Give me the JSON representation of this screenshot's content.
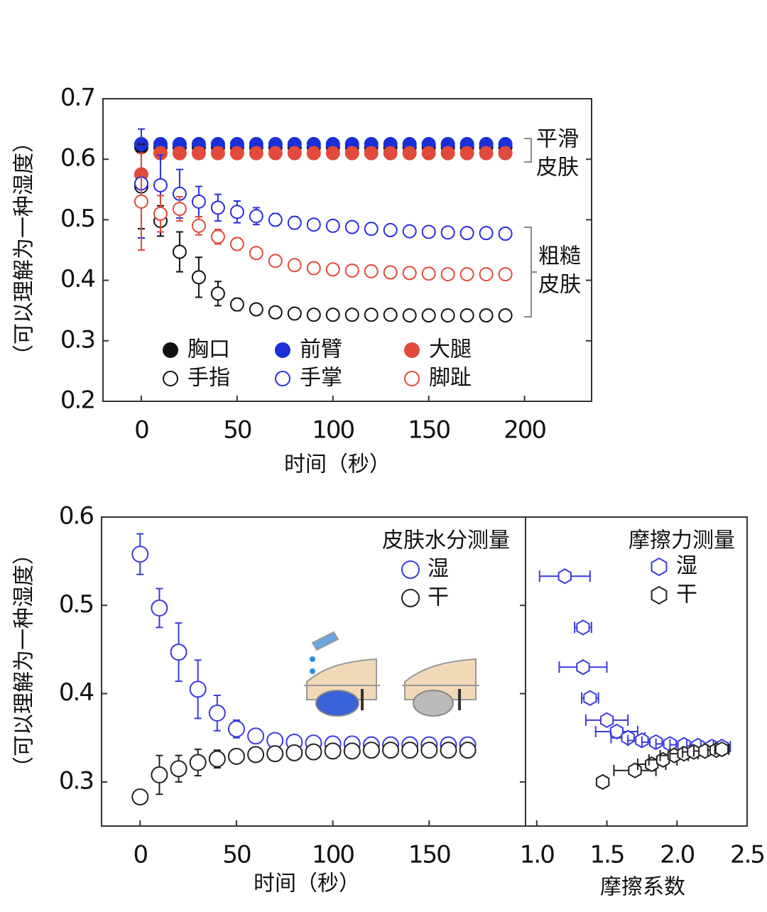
{
  "chart_data": [
    {
      "type": "scatter",
      "xlabel": "时间（秒）",
      "ylabel": "（可以理解为一种湿度）",
      "x": [
        0,
        10,
        20,
        30,
        40,
        50,
        60,
        70,
        80,
        90,
        100,
        110,
        120,
        130,
        140,
        150,
        160,
        170,
        180,
        190
      ],
      "xlim": [
        -20,
        235
      ],
      "ylim": [
        0.2,
        0.7
      ],
      "xticks": [
        0,
        50,
        100,
        150,
        200
      ],
      "yticks": [
        0.2,
        0.3,
        0.4,
        0.5,
        0.6,
        0.7
      ],
      "series": [
        {
          "name": "胸口",
          "color": "#111111",
          "filled": true,
          "marker": "circle",
          "values": [
            0.62,
            0.62,
            0.62,
            0.62,
            0.62,
            0.62,
            0.62,
            0.62,
            0.62,
            0.62,
            0.62,
            0.62,
            0.62,
            0.62,
            0.62,
            0.62,
            0.62,
            0.62,
            0.62,
            0.62
          ]
        },
        {
          "name": "前臂",
          "color": "#1a2fd6",
          "filled": true,
          "marker": "circle",
          "values": [
            0.625,
            0.625,
            0.625,
            0.625,
            0.625,
            0.625,
            0.625,
            0.625,
            0.625,
            0.625,
            0.625,
            0.625,
            0.625,
            0.625,
            0.625,
            0.625,
            0.625,
            0.625,
            0.625,
            0.625
          ]
        },
        {
          "name": "大腿",
          "color": "#e24a3b",
          "filled": true,
          "marker": "circle",
          "values": [
            0.575,
            0.61,
            0.61,
            0.61,
            0.61,
            0.61,
            0.61,
            0.61,
            0.61,
            0.61,
            0.61,
            0.61,
            0.61,
            0.61,
            0.61,
            0.61,
            0.61,
            0.61,
            0.61,
            0.61
          ]
        },
        {
          "name": "手指",
          "color": "#111111",
          "filled": false,
          "marker": "circle",
          "values": [
            0.555,
            0.498,
            0.447,
            0.405,
            0.378,
            0.36,
            0.352,
            0.347,
            0.345,
            0.343,
            0.343,
            0.343,
            0.343,
            0.343,
            0.342,
            0.342,
            0.342,
            0.342,
            0.342,
            0.342
          ],
          "errors": [
            0.07,
            0.025,
            0.033,
            0.033,
            0.02,
            0.01,
            0.008,
            0.007,
            0.007,
            0.007,
            0.007,
            0.007,
            0.007,
            0.007,
            0.007,
            0.007,
            0.007,
            0.007,
            0.007,
            0.007
          ]
        },
        {
          "name": "手掌",
          "color": "#2a2ee0",
          "filled": false,
          "marker": "circle",
          "values": [
            0.56,
            0.557,
            0.543,
            0.53,
            0.52,
            0.513,
            0.506,
            0.5,
            0.495,
            0.492,
            0.49,
            0.488,
            0.485,
            0.483,
            0.481,
            0.48,
            0.479,
            0.478,
            0.478,
            0.477
          ],
          "errors": [
            0.09,
            0.05,
            0.04,
            0.025,
            0.022,
            0.018,
            0.014,
            0.01,
            0.01,
            0.008,
            0.008,
            0.007,
            0.007,
            0.007,
            0.007,
            0.007,
            0.007,
            0.007,
            0.007,
            0.007
          ]
        },
        {
          "name": "脚趾",
          "color": "#e24a3b",
          "filled": false,
          "marker": "circle",
          "values": [
            0.53,
            0.51,
            0.518,
            0.49,
            0.472,
            0.46,
            0.445,
            0.432,
            0.425,
            0.42,
            0.418,
            0.416,
            0.415,
            0.413,
            0.412,
            0.411,
            0.41,
            0.41,
            0.41,
            0.41
          ],
          "errors": [
            0.08,
            0.03,
            0.02,
            0.015,
            0.012,
            0.01,
            0.008,
            0.008,
            0.007,
            0.007,
            0.007,
            0.007,
            0.007,
            0.007,
            0.007,
            0.007,
            0.007,
            0.007,
            0.007,
            0.007
          ]
        }
      ],
      "annotations": [
        {
          "lines": [
            "平滑",
            "皮肤"
          ]
        },
        {
          "lines": [
            "粗糙",
            "皮肤"
          ]
        }
      ]
    },
    {
      "type": "scatter",
      "xlabel": "时间（秒）",
      "ylabel": "（可以理解为一种湿度）",
      "legend_title": "皮肤水分测量",
      "x": [
        0,
        10,
        20,
        30,
        40,
        50,
        60,
        70,
        80,
        90,
        100,
        110,
        120,
        130,
        140,
        150,
        160,
        170
      ],
      "xlim": [
        -20,
        200
      ],
      "ylim": [
        0.25,
        0.6
      ],
      "xticks": [
        0,
        50,
        100,
        150
      ],
      "yticks": [
        0.3,
        0.4,
        0.5,
        0.6
      ],
      "series": [
        {
          "name": "湿",
          "color": "#3b3be0",
          "filled": false,
          "marker": "circle",
          "values": [
            0.558,
            0.497,
            0.447,
            0.405,
            0.378,
            0.36,
            0.352,
            0.347,
            0.345,
            0.344,
            0.343,
            0.343,
            0.342,
            0.342,
            0.342,
            0.342,
            0.342,
            0.342
          ],
          "errors": [
            0.023,
            0.022,
            0.033,
            0.033,
            0.02,
            0.01,
            0.008,
            0.007,
            0.007,
            0.007,
            0.007,
            0.007,
            0.007,
            0.007,
            0.007,
            0.007,
            0.007,
            0.007
          ]
        },
        {
          "name": "干",
          "color": "#222222",
          "filled": false,
          "marker": "circle",
          "values": [
            0.283,
            0.308,
            0.315,
            0.322,
            0.326,
            0.329,
            0.331,
            0.332,
            0.333,
            0.334,
            0.335,
            0.335,
            0.336,
            0.336,
            0.336,
            0.336,
            0.336,
            0.336
          ],
          "errors": [
            0.007,
            0.022,
            0.015,
            0.015,
            0.01,
            0.008,
            0.008,
            0.008,
            0.008,
            0.008,
            0.008,
            0.008,
            0.008,
            0.008,
            0.008,
            0.008,
            0.008,
            0.008
          ]
        }
      ]
    },
    {
      "type": "scatter",
      "xlabel": "摩擦系数",
      "legend_title": "摩擦力测量",
      "xlim": [
        0.92,
        2.5
      ],
      "ylim": [
        0.25,
        0.6
      ],
      "xticks": [
        {
          "value": 1,
          "label": "1.0"
        },
        1.5,
        {
          "value": 2,
          "label": "2.0"
        },
        2.5
      ],
      "series": [
        {
          "name": "湿",
          "color": "#3b3be0",
          "filled": false,
          "marker": "hexagon",
          "x": [
            1.2,
            1.33,
            1.33,
            1.38,
            1.5,
            1.57,
            1.65,
            1.75,
            1.85,
            1.95,
            2.05,
            2.15,
            2.25,
            2.32
          ],
          "values": [
            0.533,
            0.475,
            0.43,
            0.395,
            0.37,
            0.357,
            0.35,
            0.347,
            0.345,
            0.343,
            0.342,
            0.341,
            0.34,
            0.34
          ],
          "xerrors": [
            0.18,
            0.06,
            0.17,
            0.06,
            0.15,
            0.15,
            0.12,
            0.1,
            0.1,
            0.1,
            0.1,
            0.08,
            0.08,
            0.06
          ]
        },
        {
          "name": "干",
          "color": "#222222",
          "filled": false,
          "marker": "hexagon",
          "x": [
            1.47,
            1.7,
            1.82,
            1.9,
            1.98,
            2.05,
            2.12,
            2.2,
            2.28,
            2.32
          ],
          "values": [
            0.3,
            0.313,
            0.32,
            0.325,
            0.33,
            0.332,
            0.334,
            0.335,
            0.336,
            0.337
          ],
          "xerrors": [
            0.03,
            0.15,
            0.1,
            0.1,
            0.1,
            0.1,
            0.08,
            0.08,
            0.06,
            0.05
          ]
        }
      ]
    }
  ]
}
